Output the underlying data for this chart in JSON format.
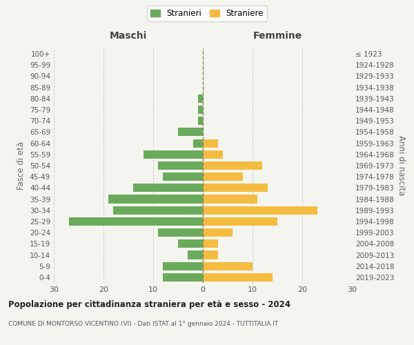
{
  "age_groups": [
    "0-4",
    "5-9",
    "10-14",
    "15-19",
    "20-24",
    "25-29",
    "30-34",
    "35-39",
    "40-44",
    "45-49",
    "50-54",
    "55-59",
    "60-64",
    "65-69",
    "70-74",
    "75-79",
    "80-84",
    "85-89",
    "90-94",
    "95-99",
    "100+"
  ],
  "birth_years": [
    "2019-2023",
    "2014-2018",
    "2009-2013",
    "2004-2008",
    "1999-2003",
    "1994-1998",
    "1989-1993",
    "1984-1988",
    "1979-1983",
    "1974-1978",
    "1969-1973",
    "1964-1968",
    "1959-1963",
    "1954-1958",
    "1949-1953",
    "1944-1948",
    "1939-1943",
    "1934-1938",
    "1929-1933",
    "1924-1928",
    "≤ 1923"
  ],
  "maschi_stranieri": [
    8,
    8,
    3,
    5,
    9,
    27,
    18,
    19,
    14,
    8,
    9,
    12,
    2,
    5,
    1,
    1,
    1,
    0,
    0,
    0,
    0
  ],
  "femmine_straniere": [
    14,
    10,
    3,
    3,
    6,
    15,
    23,
    11,
    13,
    8,
    12,
    4,
    3,
    0,
    0,
    0,
    0,
    0,
    0,
    0,
    0
  ],
  "color_maschi": "#6aaa5b",
  "color_femmine": "#f5bc42",
  "color_dashed_line": "#888855",
  "bg_color": "#f5f5f0",
  "grid_color": "#cccccc",
  "xlabel_left": "Maschi",
  "xlabel_right": "Femmine",
  "ylabel_left": "Fasce di età",
  "ylabel_right": "Anni di nascita",
  "legend_stranieri": "Stranieri",
  "legend_straniere": "Straniere",
  "title": "Popolazione per cittadinanza straniera per età e sesso - 2024",
  "subtitle": "COMUNE DI MONTORSO VICENTINO (VI) - Dati ISTAT al 1° gennaio 2024 - TUTTITALIA.IT",
  "xlim": 30
}
